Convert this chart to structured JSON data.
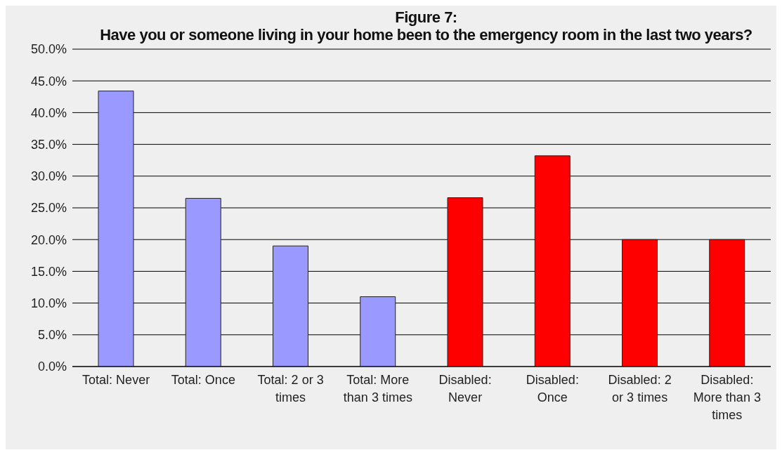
{
  "chart_data": {
    "type": "bar",
    "title": "Figure 7:\nHave you or someone living in your home been to the emergency room in the last two years?",
    "categories": [
      "Total: Never",
      "Total: Once",
      "Total: 2 or 3 times",
      "Total: More than 3 times",
      "Disabled: Never",
      "Disabled: Once",
      "Disabled: 2 or 3 times",
      "Disabled: More than 3 times"
    ],
    "values": [
      43.4,
      26.5,
      19.0,
      11.0,
      26.6,
      33.2,
      20.0,
      20.0
    ],
    "colors": [
      "#9999ff",
      "#9999ff",
      "#9999ff",
      "#9999ff",
      "#ff0000",
      "#ff0000",
      "#ff0000",
      "#ff0000"
    ],
    "ylim": [
      0,
      50
    ],
    "yticks": [
      {
        "value": 0,
        "label": "0.0%"
      },
      {
        "value": 5,
        "label": "5.0%"
      },
      {
        "value": 10,
        "label": "10.0%"
      },
      {
        "value": 15,
        "label": "15.0%"
      },
      {
        "value": 20,
        "label": "20.0%"
      },
      {
        "value": 25,
        "label": "25.0%"
      },
      {
        "value": 30,
        "label": "30.0%"
      },
      {
        "value": 35,
        "label": "35.0%"
      },
      {
        "value": 40,
        "label": "40.0%"
      },
      {
        "value": 45,
        "label": "45.0%"
      },
      {
        "value": 50,
        "label": "50.0%"
      }
    ],
    "grid": "y",
    "legend": false
  }
}
